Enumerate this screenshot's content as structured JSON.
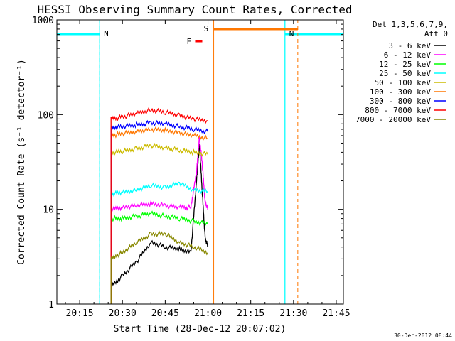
{
  "chart_data": {
    "type": "line",
    "title": "HESSI Observing Summary Count Rates, Corrected",
    "xlabel": "Start Time (28-Dec-12 20:07:02)",
    "ylabel": "Corrected Count Rate (s⁻¹ detector⁻¹)",
    "yscale": "log",
    "ylim": [
      1,
      1000
    ],
    "xlim_minutes_after_20_00": [
      7.0,
      107.5
    ],
    "x_ticks": [
      {
        "label": "20:15",
        "min": 15
      },
      {
        "label": "20:30",
        "min": 30
      },
      {
        "label": "20:45",
        "min": 45
      },
      {
        "label": "21:00",
        "min": 60
      },
      {
        "label": "21:15",
        "min": 75
      },
      {
        "label": "21:30",
        "min": 90
      },
      {
        "label": "21:45",
        "min": 105
      }
    ],
    "y_ticks": [
      {
        "label": "1",
        "value": 1
      },
      {
        "label": "10",
        "value": 10
      },
      {
        "label": "100",
        "value": 100
      },
      {
        "label": "1000",
        "value": 1000
      }
    ],
    "legend": {
      "placement": "right",
      "header": [
        "Det 1,3,5,6,7,9,",
        "Att 0"
      ]
    },
    "series": [
      {
        "name": "3 - 6 keV",
        "color": "#000000",
        "x": [
          26,
          30,
          35,
          40,
          45,
          50,
          54,
          56,
          57,
          58,
          59,
          60
        ],
        "y": [
          1.5,
          2.0,
          2.8,
          4.5,
          4.0,
          3.8,
          3.5,
          20,
          50,
          15,
          5,
          4
        ]
      },
      {
        "name": "6 - 12 keV",
        "color": "#ff00ff",
        "x": [
          26,
          30,
          35,
          40,
          45,
          50,
          54,
          56,
          57,
          58,
          59,
          60
        ],
        "y": [
          10.0,
          10.5,
          11.0,
          11.5,
          11.0,
          10.5,
          10.5,
          25,
          58,
          30,
          12,
          10
        ]
      },
      {
        "name": "12 - 25 keV",
        "color": "#00ff00",
        "x": [
          26,
          30,
          35,
          40,
          45,
          50,
          55,
          60
        ],
        "y": [
          8.0,
          8.0,
          8.5,
          9.0,
          8.5,
          8.0,
          7.5,
          7.0
        ]
      },
      {
        "name": "25 - 50 keV",
        "color": "#00ffff",
        "x": [
          26,
          30,
          35,
          40,
          45,
          50,
          55,
          60
        ],
        "y": [
          14.5,
          15.0,
          16.0,
          18.0,
          17.0,
          19.0,
          16.0,
          15.5
        ]
      },
      {
        "name": "50 - 100 keV",
        "color": "#ccbb00",
        "x": [
          26,
          30,
          35,
          40,
          45,
          50,
          55,
          60
        ],
        "y": [
          40,
          41,
          44,
          47,
          45,
          42,
          40,
          38
        ]
      },
      {
        "name": "100 - 300 keV",
        "color": "#ff7700",
        "x": [
          26,
          30,
          35,
          40,
          45,
          50,
          55,
          60
        ],
        "y": [
          60,
          63,
          66,
          70,
          68,
          64,
          60,
          56
        ]
      },
      {
        "name": "300 - 800 keV",
        "color": "#0000ff",
        "x": [
          26,
          30,
          35,
          40,
          45,
          50,
          55,
          60
        ],
        "y": [
          73,
          75,
          78,
          82,
          80,
          75,
          70,
          66
        ]
      },
      {
        "name": "800 - 7000 keV",
        "color": "#ff0000",
        "x": [
          26,
          30,
          35,
          40,
          45,
          50,
          55,
          60
        ],
        "y": [
          90,
          95,
          102,
          112,
          106,
          98,
          90,
          86
        ]
      },
      {
        "name": "7000 - 20000 keV",
        "color": "#888800",
        "x": [
          26,
          30,
          35,
          40,
          45,
          50,
          55,
          60
        ],
        "y": [
          3.0,
          3.5,
          4.5,
          5.5,
          5.5,
          4.5,
          4.0,
          3.5
        ]
      }
    ],
    "annotations": [
      {
        "label": "N",
        "color": "#00ffff",
        "from": 7.0,
        "to": 22.0
      },
      {
        "label": "N",
        "color": "#00ffff",
        "from": 87.0,
        "to": 107.5
      },
      {
        "label": "S",
        "color": "#ff7700",
        "from": 62.0,
        "to": 91.5
      },
      {
        "label": "F",
        "color": "#ff0000",
        "from": 53.0,
        "to": 58.0
      }
    ]
  },
  "footer": {
    "date_stamp": "30-Dec-2012 08:44"
  }
}
